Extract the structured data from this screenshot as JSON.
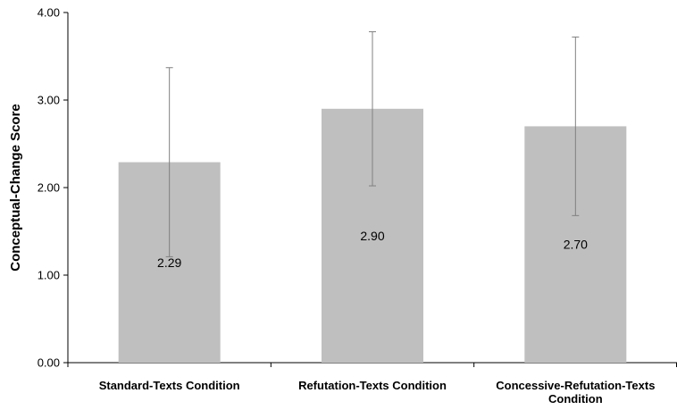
{
  "chart_data": {
    "type": "bar",
    "title": "",
    "xlabel": "",
    "ylabel": "Conceptual-Change Score",
    "ylim": [
      0,
      4
    ],
    "yticks": [
      "0.00",
      "1.00",
      "2.00",
      "3.00",
      "4.00"
    ],
    "categories": [
      [
        "Standard-Texts Condition"
      ],
      [
        "Refutation-Texts Condition"
      ],
      [
        "Concessive-Refutation-Texts",
        "Condition"
      ]
    ],
    "values": [
      2.29,
      2.9,
      2.7
    ],
    "value_labels": [
      "2.29",
      "2.90",
      "2.70"
    ],
    "error_bars": [
      {
        "low": 1.21,
        "high": 3.37
      },
      {
        "low": 2.02,
        "high": 3.78
      },
      {
        "low": 1.68,
        "high": 3.72
      }
    ],
    "grid": false,
    "colors": {
      "bar": "#bfbfbf",
      "error_bar": "#808080",
      "axis": "#000000"
    }
  }
}
